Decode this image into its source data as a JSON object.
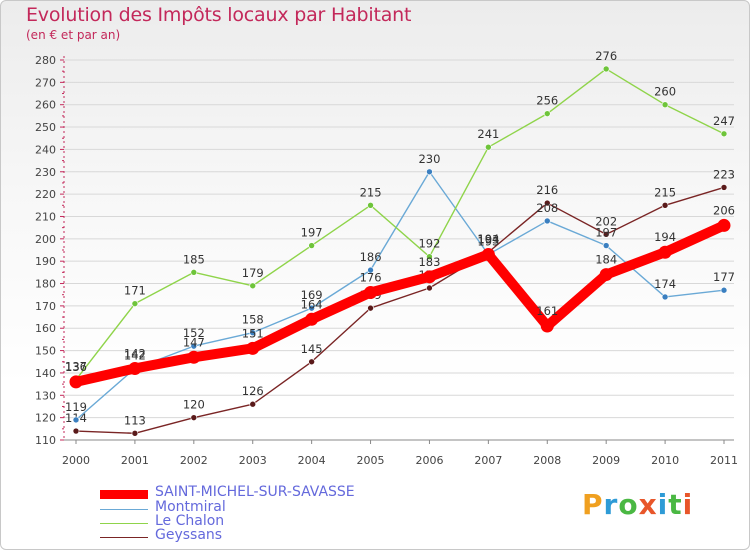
{
  "title": "Evolution des Impôts locaux par Habitant",
  "subtitle": "(en € et par an)",
  "logo": {
    "text": "Proxiti",
    "colors": [
      "#f0a020",
      "#2e9bd6",
      "#4ab843",
      "#e8562a",
      "#2e9bd6",
      "#4ab843",
      "#e8562a"
    ]
  },
  "chart_data": {
    "type": "line",
    "x": [
      "2000",
      "2001",
      "2002",
      "2003",
      "2004",
      "2005",
      "2006",
      "2007",
      "2008",
      "2009",
      "2010",
      "2011"
    ],
    "ylim": [
      110,
      280
    ],
    "yticks": [
      110,
      120,
      130,
      140,
      150,
      160,
      170,
      180,
      190,
      200,
      210,
      220,
      230,
      240,
      250,
      260,
      270,
      280
    ],
    "series": [
      {
        "name": "Geyssans",
        "color": "#7a2525",
        "point_color": "#5a1a1a",
        "bold": false,
        "values": [
          114,
          113,
          120,
          126,
          145,
          169,
          178,
          194,
          216,
          202,
          215,
          223
        ],
        "labels": [
          "114",
          "113",
          "120",
          "126",
          "145",
          "169",
          "178",
          "194",
          "216",
          "202",
          "215",
          "223"
        ]
      },
      {
        "name": "Montmiral",
        "color": "#6aa9d6",
        "point_color": "#3a7fc0",
        "bold": false,
        "values": [
          119,
          142,
          152,
          158,
          169,
          186,
          230,
          193,
          208,
          197,
          174,
          177
        ],
        "labels": [
          "119",
          "142",
          "152",
          "158",
          "169",
          "186",
          "230",
          "193",
          "208",
          "197",
          "174",
          "177"
        ]
      },
      {
        "name": "Le Chalon",
        "color": "#8fd44a",
        "point_color": "#6ec43a",
        "bold": false,
        "values": [
          137,
          171,
          185,
          179,
          197,
          215,
          192,
          241,
          256,
          276,
          260,
          247
        ],
        "labels": [
          "137",
          "171",
          "185",
          "179",
          "197",
          "215",
          "192",
          "241",
          "256",
          "276",
          "260",
          "247"
        ]
      },
      {
        "name": "SAINT-MICHEL-SUR-SAVASSE",
        "color": "#ff0000",
        "point_color": "#ff0000",
        "bold": true,
        "values": [
          136,
          142,
          147,
          151,
          164,
          176,
          183,
          193,
          161,
          184,
          194,
          206
        ],
        "labels": [
          "136",
          "142",
          "147",
          "151",
          "164",
          "176",
          "183",
          "193",
          "161",
          "184",
          "194",
          "206"
        ]
      }
    ],
    "legend": [
      {
        "name": "SAINT-MICHEL-SUR-SAVASSE",
        "color": "#ff0000",
        "bold": true
      },
      {
        "name": "Montmiral",
        "color": "#6aa9d6",
        "bold": false
      },
      {
        "name": "Le Chalon",
        "color": "#8fd44a",
        "bold": false
      },
      {
        "name": "Geyssans",
        "color": "#7a2525",
        "bold": false
      }
    ]
  }
}
